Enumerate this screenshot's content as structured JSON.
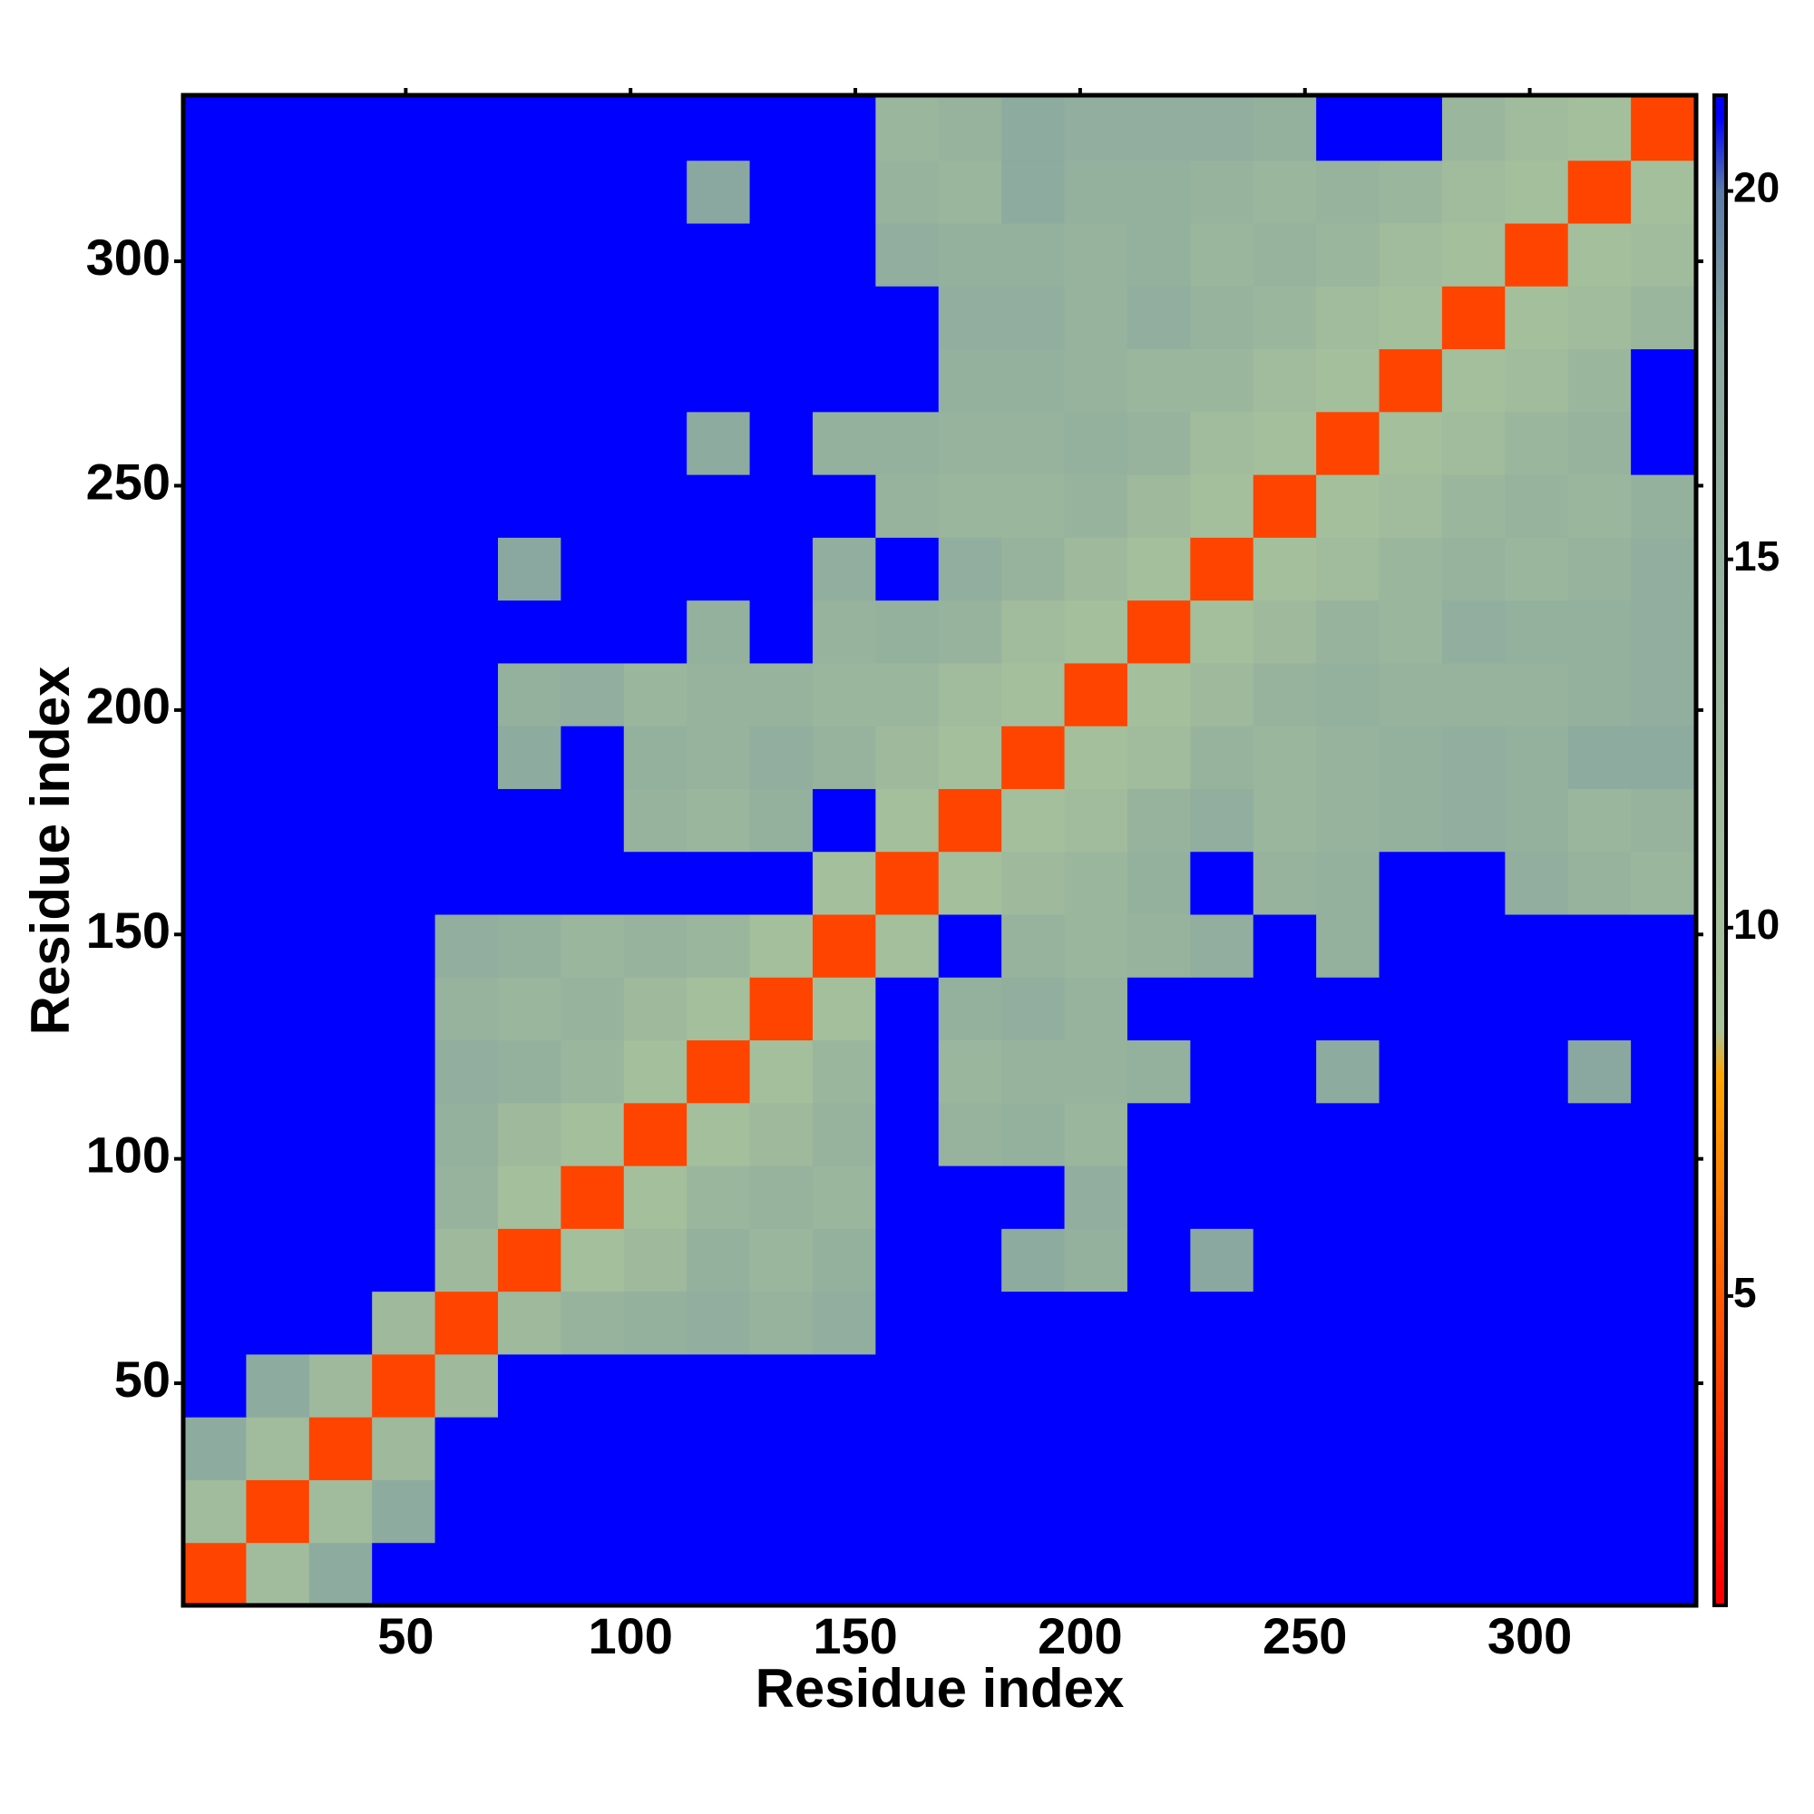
{
  "chart_data": {
    "type": "heatmap",
    "xlabel": "Residue index",
    "ylabel": "Residue index",
    "bins": [
      0.5,
      14.5,
      28.5,
      42.5,
      56.5,
      70.5,
      84.5,
      98.5,
      112.5,
      126.5,
      140.5,
      154.5,
      168.5,
      182.5,
      196.5,
      210.5,
      224.5,
      238.5,
      252.5,
      266.5,
      280.5,
      294.5,
      308.5,
      322.5,
      336.5
    ],
    "xlim": [
      0.5,
      337
    ],
    "ylim": [
      0.5,
      337
    ],
    "xticks": [
      50,
      100,
      150,
      200,
      250,
      300
    ],
    "yticks": [
      50,
      100,
      150,
      200,
      250,
      300
    ],
    "colorbar": {
      "lim": [
        0.8,
        21.3
      ],
      "ticks": [
        5,
        10,
        15,
        20
      ]
    },
    "colorscale": [
      {
        "value": 1,
        "color": "#ff0000"
      },
      {
        "value": 5,
        "color": "#ff5a00"
      },
      {
        "value": 8,
        "color": "#ffa500"
      },
      {
        "value": 8.6,
        "color": "#a9c39a"
      },
      {
        "value": 18,
        "color": "#8aa8a0"
      },
      {
        "value": 20,
        "color": "#5a7aa8"
      },
      {
        "value": 21,
        "color": "#0000ff"
      }
    ],
    "values": [
      [
        4,
        11,
        17,
        21,
        21,
        21,
        21,
        21,
        21,
        21,
        21,
        21,
        21,
        21,
        21,
        21,
        21,
        21,
        21,
        21,
        21,
        21,
        21,
        21
      ],
      [
        11,
        4,
        11,
        17,
        21,
        21,
        21,
        21,
        21,
        21,
        21,
        21,
        21,
        21,
        21,
        21,
        21,
        21,
        21,
        21,
        21,
        21,
        21,
        21
      ],
      [
        17,
        11,
        4,
        12,
        21,
        21,
        21,
        21,
        21,
        21,
        21,
        21,
        21,
        21,
        21,
        21,
        21,
        21,
        21,
        21,
        21,
        21,
        21,
        21
      ],
      [
        21,
        17,
        12,
        4,
        12,
        21,
        21,
        21,
        21,
        21,
        21,
        21,
        21,
        21,
        21,
        21,
        21,
        21,
        21,
        21,
        21,
        21,
        21,
        21
      ],
      [
        21,
        21,
        21,
        12,
        4,
        12,
        14,
        15,
        16,
        14,
        16,
        21,
        21,
        21,
        21,
        21,
        21,
        21,
        21,
        21,
        21,
        21,
        21,
        21
      ],
      [
        21,
        21,
        21,
        21,
        12,
        4,
        10,
        12,
        15,
        13,
        15,
        21,
        21,
        17,
        15,
        21,
        18,
        21,
        21,
        21,
        21,
        21,
        21,
        21
      ],
      [
        21,
        21,
        21,
        21,
        14,
        10,
        4,
        10,
        13,
        14,
        13,
        21,
        21,
        21,
        16,
        21,
        21,
        21,
        21,
        21,
        21,
        21,
        21,
        21
      ],
      [
        21,
        21,
        21,
        21,
        15,
        12,
        10,
        4,
        10,
        12,
        14,
        21,
        14,
        15,
        13,
        21,
        21,
        21,
        21,
        21,
        21,
        21,
        21,
        21
      ],
      [
        21,
        21,
        21,
        21,
        16,
        15,
        13,
        10,
        4,
        10,
        13,
        21,
        13,
        14,
        14,
        15,
        21,
        21,
        17,
        21,
        21,
        21,
        18,
        21
      ],
      [
        21,
        21,
        21,
        21,
        14,
        13,
        14,
        12,
        10,
        4,
        10,
        21,
        15,
        16,
        14,
        21,
        21,
        21,
        21,
        21,
        21,
        21,
        21,
        21
      ],
      [
        21,
        21,
        21,
        21,
        16,
        15,
        13,
        14,
        13,
        10,
        4,
        10,
        21,
        14,
        13,
        14,
        16,
        21,
        15,
        21,
        21,
        21,
        21,
        21
      ],
      [
        21,
        21,
        21,
        21,
        21,
        21,
        21,
        21,
        21,
        21,
        10,
        4,
        10,
        12,
        13,
        15,
        21,
        14,
        15,
        21,
        21,
        16,
        14,
        13
      ],
      [
        21,
        21,
        21,
        21,
        21,
        21,
        21,
        14,
        13,
        15,
        21,
        10,
        4,
        10,
        11,
        14,
        16,
        13,
        14,
        15,
        16,
        15,
        13,
        14
      ],
      [
        21,
        21,
        21,
        21,
        21,
        17,
        21,
        15,
        14,
        16,
        14,
        12,
        10,
        4,
        10,
        11,
        14,
        13,
        14,
        15,
        16,
        15,
        17,
        17
      ],
      [
        21,
        21,
        21,
        21,
        21,
        15,
        16,
        13,
        14,
        14,
        13,
        13,
        11,
        10,
        4,
        10,
        12,
        14,
        15,
        14,
        14,
        14,
        15,
        16
      ],
      [
        21,
        21,
        21,
        21,
        21,
        21,
        21,
        21,
        15,
        21,
        14,
        15,
        14,
        11,
        10,
        4,
        10,
        12,
        14,
        13,
        16,
        15,
        15,
        16
      ],
      [
        21,
        21,
        21,
        21,
        21,
        18,
        21,
        21,
        21,
        21,
        16,
        21,
        16,
        14,
        12,
        10,
        4,
        10,
        11,
        13,
        14,
        13,
        14,
        16
      ],
      [
        21,
        21,
        21,
        21,
        21,
        21,
        21,
        21,
        21,
        21,
        21,
        14,
        13,
        13,
        14,
        12,
        10,
        4,
        10,
        11,
        13,
        14,
        13,
        15
      ],
      [
        21,
        21,
        21,
        21,
        21,
        21,
        21,
        21,
        17,
        21,
        15,
        15,
        14,
        14,
        15,
        14,
        11,
        10,
        4,
        10,
        11,
        13,
        14,
        21
      ],
      [
        21,
        21,
        21,
        21,
        21,
        21,
        21,
        21,
        21,
        21,
        21,
        21,
        15,
        15,
        14,
        13,
        13,
        11,
        10,
        4,
        10,
        11,
        13,
        21
      ],
      [
        21,
        21,
        21,
        21,
        21,
        21,
        21,
        21,
        21,
        21,
        21,
        21,
        16,
        16,
        14,
        16,
        14,
        13,
        11,
        10,
        4,
        10,
        11,
        13
      ],
      [
        21,
        21,
        21,
        21,
        21,
        21,
        21,
        21,
        21,
        21,
        21,
        16,
        15,
        15,
        14,
        15,
        13,
        14,
        13,
        11,
        10,
        4,
        10,
        11
      ],
      [
        21,
        21,
        21,
        21,
        21,
        21,
        21,
        21,
        18,
        21,
        21,
        14,
        13,
        17,
        15,
        15,
        14,
        13,
        14,
        13,
        11,
        10,
        4,
        10
      ],
      [
        21,
        21,
        21,
        21,
        21,
        21,
        21,
        21,
        21,
        21,
        21,
        13,
        14,
        17,
        16,
        16,
        16,
        15,
        21,
        21,
        13,
        11,
        10,
        4
      ]
    ]
  }
}
